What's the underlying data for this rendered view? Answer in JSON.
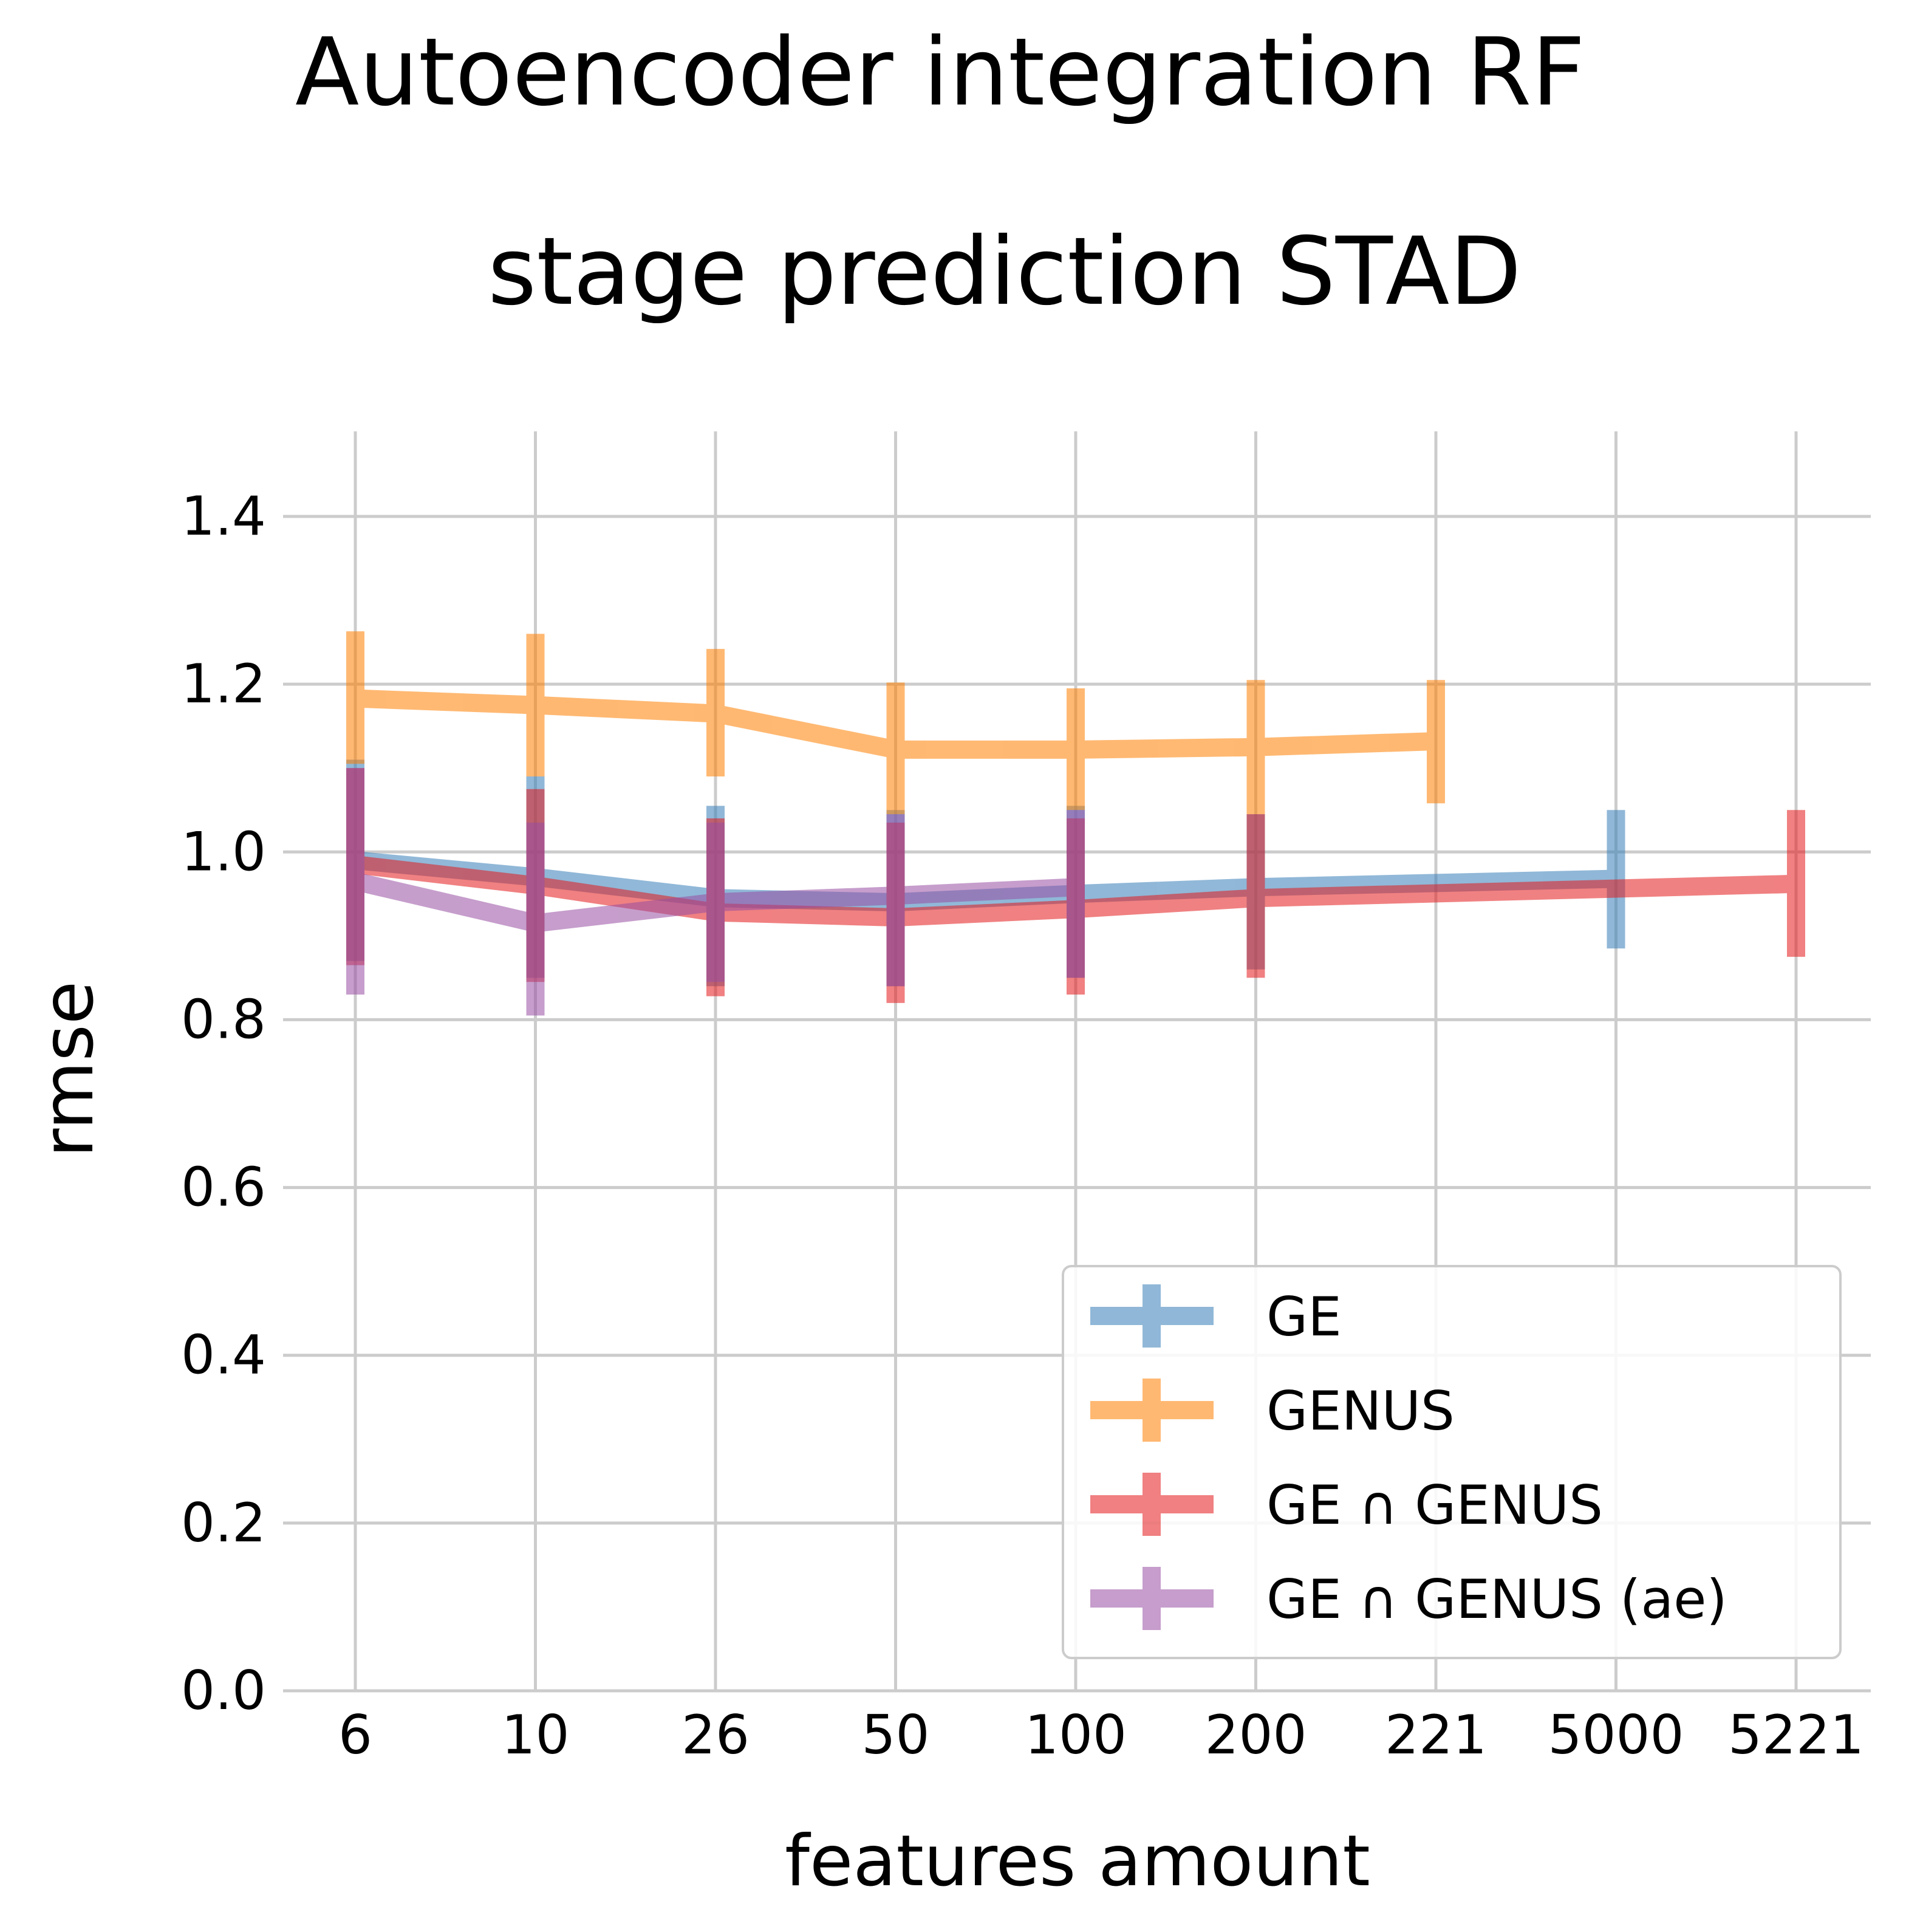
{
  "chart_data": {
    "type": "line",
    "title_lines": [
      "Autoencoder integration RF",
      "stage prediction STAD"
    ],
    "xlabel": "features amount",
    "ylabel": "rmse",
    "x_categories": [
      "6",
      "10",
      "26",
      "50",
      "100",
      "200",
      "221",
      "5000",
      "5221"
    ],
    "y_ticks": [
      "0.0",
      "0.2",
      "0.4",
      "0.6",
      "0.8",
      "1.0",
      "1.2",
      "1.4"
    ],
    "ylim": [
      0,
      1.5
    ],
    "grid": true,
    "legend_position": "lower-right",
    "series": [
      {
        "name": "GE",
        "color": "#377eb8",
        "x": [
          "6",
          "10",
          "26",
          "50",
          "100",
          "200",
          "5000"
        ],
        "y": [
          0.99,
          0.97,
          0.945,
          0.94,
          0.95,
          0.958,
          0.968
        ],
        "err_low": [
          0.87,
          0.85,
          0.84,
          0.84,
          0.85,
          0.86,
          0.885
        ],
        "err_high": [
          1.11,
          1.09,
          1.055,
          1.05,
          1.055,
          1.045,
          1.05
        ]
      },
      {
        "name": "GENUS",
        "color": "#ff7f00",
        "x": [
          "6",
          "10",
          "26",
          "50",
          "100",
          "200",
          "221"
        ],
        "y": [
          1.183,
          1.175,
          1.165,
          1.122,
          1.122,
          1.125,
          1.132
        ],
        "err_low": [
          1.105,
          1.09,
          1.09,
          1.045,
          1.05,
          1.045,
          1.058
        ],
        "err_high": [
          1.263,
          1.26,
          1.242,
          1.202,
          1.195,
          1.205,
          1.205
        ]
      },
      {
        "name": "GE ∩ GENUS",
        "color": "#e41a1c",
        "x": [
          "6",
          "10",
          "26",
          "50",
          "100",
          "200",
          "5221"
        ],
        "y": [
          0.985,
          0.96,
          0.928,
          0.922,
          0.932,
          0.945,
          0.962
        ],
        "err_low": [
          0.865,
          0.845,
          0.828,
          0.82,
          0.83,
          0.85,
          0.875
        ],
        "err_high": [
          1.1,
          1.075,
          1.04,
          1.035,
          1.04,
          1.045,
          1.05
        ]
      },
      {
        "name": "GE ∩ GENUS (ae)",
        "color": "#984ea3",
        "x": [
          "6",
          "10",
          "26",
          "50",
          "100"
        ],
        "y": [
          0.965,
          0.915,
          0.94,
          0.948,
          0.958
        ],
        "err_low": [
          0.83,
          0.805,
          0.845,
          0.84,
          0.85
        ],
        "err_high": [
          1.1,
          1.035,
          1.035,
          1.045,
          1.05
        ]
      }
    ]
  }
}
